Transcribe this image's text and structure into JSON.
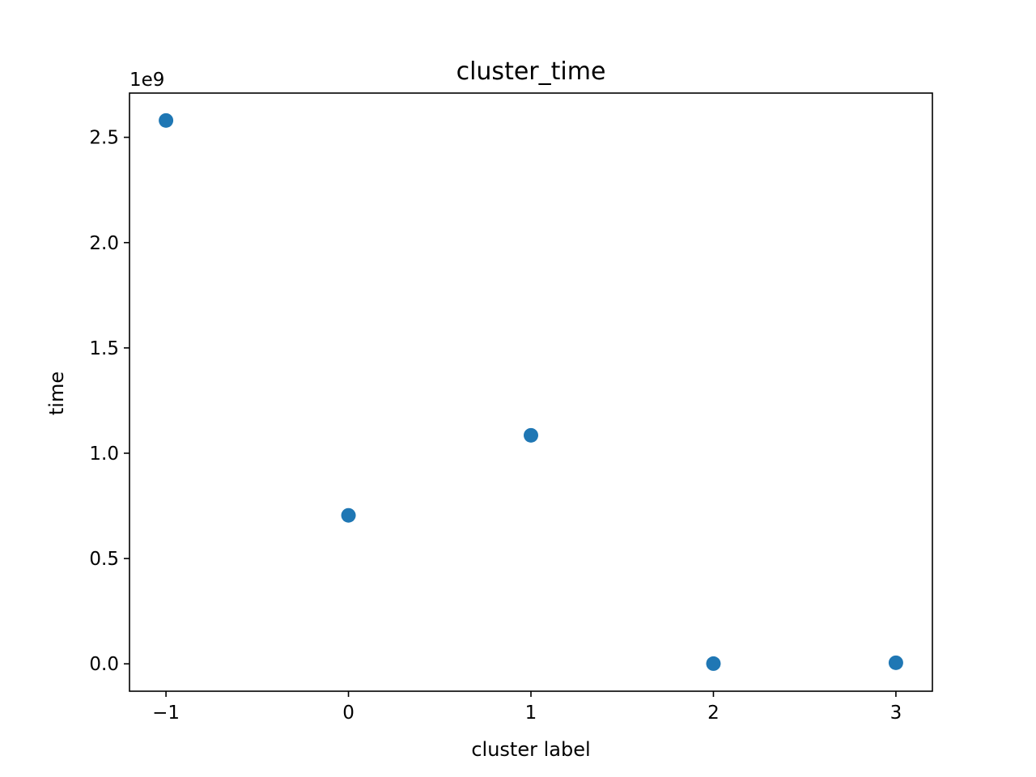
{
  "chart_data": {
    "type": "scatter",
    "title": "cluster_time",
    "xlabel": "cluster label",
    "ylabel": "time",
    "y_offset_label": "1e9",
    "x": [
      -1,
      0,
      1,
      2,
      3
    ],
    "y": [
      2580000000,
      705000000,
      1085000000,
      1000000,
      5000000
    ],
    "xlim": [
      -1.2,
      3.2
    ],
    "ylim": [
      -0.13,
      2.71
    ],
    "y_scale_factor": 1000000000,
    "x_ticks": [
      -1,
      0,
      1,
      2,
      3
    ],
    "x_tick_labels": [
      "−1",
      "0",
      "1",
      "2",
      "3"
    ],
    "y_ticks": [
      0,
      0.5,
      1,
      1.5,
      2,
      2.5
    ],
    "y_tick_labels": [
      "0.0",
      "0.5",
      "1.0",
      "1.5",
      "2.0",
      "2.5"
    ],
    "grid": false,
    "marker_color": "#1f77b4"
  }
}
